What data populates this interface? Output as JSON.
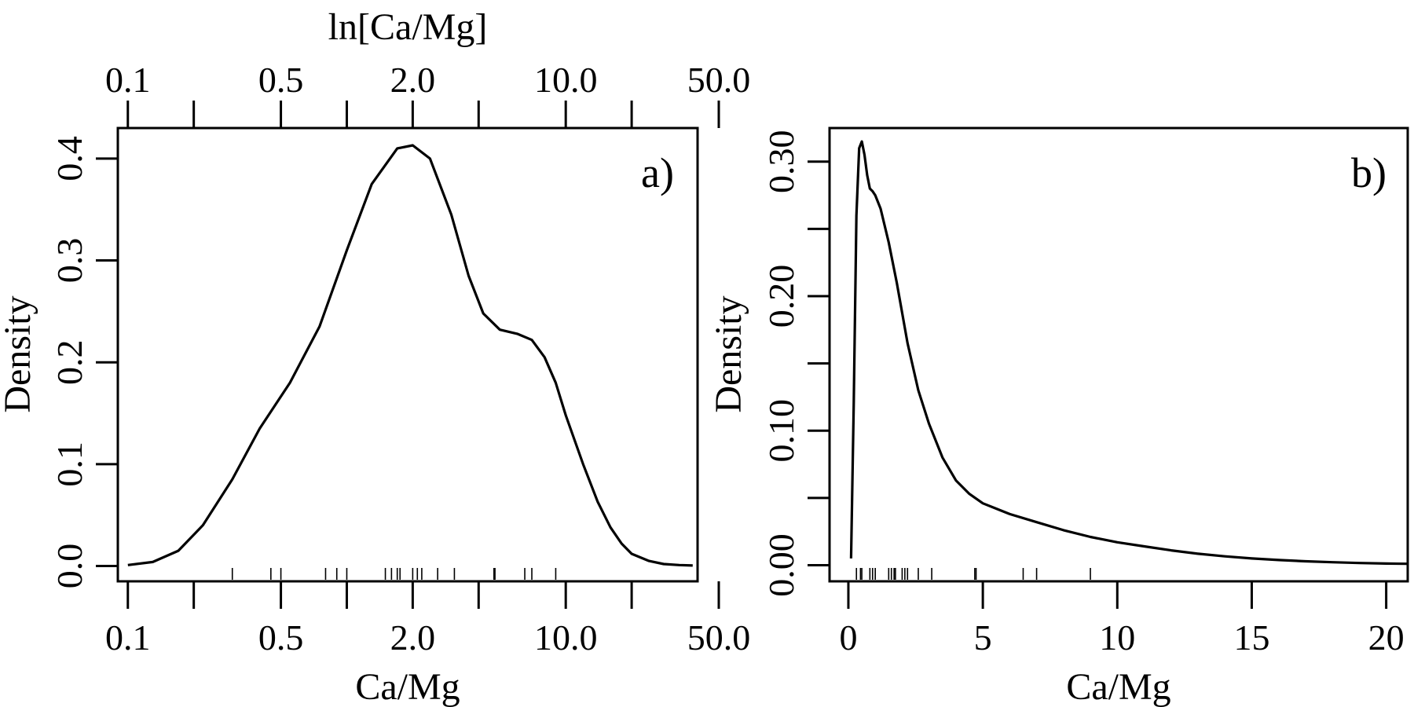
{
  "chart_data": [
    {
      "panel": "a)",
      "type": "line",
      "xlabel": "Ca/Mg",
      "top_xlabel": "ln[Ca/Mg]",
      "ylabel": "Density",
      "x_scale": "log",
      "xlim": [
        0.09,
        40
      ],
      "ylim": [
        -0.015,
        0.43
      ],
      "x_tick_values": [
        0.1,
        0.2,
        0.5,
        1,
        2,
        4,
        10,
        20,
        50
      ],
      "x_tick_labels": [
        {
          "value": 0.1,
          "label": "0.1"
        },
        {
          "value": 0.5,
          "label": "0.5"
        },
        {
          "value": 2,
          "label": "2.0"
        },
        {
          "value": 10,
          "label": "10.0"
        },
        {
          "value": 50,
          "label": "50.0"
        }
      ],
      "y_ticks": [
        {
          "value": 0.0,
          "label": "0.0"
        },
        {
          "value": 0.1,
          "label": "0.1"
        },
        {
          "value": 0.2,
          "label": "0.2"
        },
        {
          "value": 0.3,
          "label": "0.3"
        },
        {
          "value": 0.4,
          "label": "0.4"
        }
      ],
      "series": [
        {
          "x": [
            0.1,
            0.13,
            0.17,
            0.22,
            0.3,
            0.4,
            0.55,
            0.75,
            1.0,
            1.3,
            1.7,
            2.0,
            2.4,
            3.0,
            3.6,
            4.2,
            5.0,
            6.0,
            7.0,
            8.0,
            9.0,
            10.0,
            12.0,
            14.0,
            16.0,
            18.0,
            20.0,
            24.0,
            28.0,
            33.0,
            38.0
          ],
          "y": [
            0.001,
            0.004,
            0.015,
            0.04,
            0.085,
            0.135,
            0.18,
            0.235,
            0.31,
            0.375,
            0.41,
            0.413,
            0.4,
            0.345,
            0.285,
            0.248,
            0.232,
            0.228,
            0.222,
            0.205,
            0.18,
            0.148,
            0.1,
            0.063,
            0.038,
            0.022,
            0.012,
            0.005,
            0.002,
            0.001,
            0.0005
          ]
        }
      ],
      "rug": [
        0.3,
        0.45,
        0.5,
        0.8,
        0.9,
        1.0,
        1.5,
        1.6,
        1.7,
        1.75,
        2.0,
        2.1,
        2.2,
        2.6,
        3.1,
        4.7,
        4.75,
        6.5,
        7.0,
        9.0
      ]
    },
    {
      "panel": "b)",
      "type": "line",
      "xlabel": "Ca/Mg",
      "ylabel": "Density",
      "x_scale": "linear",
      "xlim": [
        -0.7,
        20.8
      ],
      "ylim": [
        -0.012,
        0.325
      ],
      "x_ticks": [
        {
          "value": 0,
          "label": "0"
        },
        {
          "value": 5,
          "label": "5"
        },
        {
          "value": 10,
          "label": "10"
        },
        {
          "value": 15,
          "label": "15"
        },
        {
          "value": 20,
          "label": "20"
        }
      ],
      "y_ticks": [
        {
          "value": 0.0,
          "label": "0.00"
        },
        {
          "value": 0.05,
          "label": ""
        },
        {
          "value": 0.1,
          "label": "0.10"
        },
        {
          "value": 0.15,
          "label": ""
        },
        {
          "value": 0.2,
          "label": "0.20"
        },
        {
          "value": 0.25,
          "label": ""
        },
        {
          "value": 0.3,
          "label": "0.30"
        }
      ],
      "series": [
        {
          "x": [
            0.1,
            0.2,
            0.3,
            0.4,
            0.5,
            0.6,
            0.7,
            0.8,
            0.9,
            1.0,
            1.2,
            1.5,
            1.8,
            2.2,
            2.6,
            3.0,
            3.5,
            4.0,
            4.5,
            5.0,
            6.0,
            7.0,
            8.0,
            9.0,
            10.0,
            11.0,
            12.0,
            13.0,
            14.0,
            15.0,
            16.0,
            17.0,
            18.0,
            19.0,
            20.0,
            20.8
          ],
          "y": [
            0.005,
            0.12,
            0.26,
            0.31,
            0.315,
            0.305,
            0.29,
            0.28,
            0.278,
            0.275,
            0.265,
            0.24,
            0.21,
            0.165,
            0.13,
            0.105,
            0.08,
            0.063,
            0.053,
            0.046,
            0.038,
            0.032,
            0.026,
            0.021,
            0.017,
            0.014,
            0.011,
            0.0085,
            0.0066,
            0.005,
            0.0038,
            0.0029,
            0.0022,
            0.0016,
            0.0012,
            0.001
          ]
        }
      ],
      "rug": [
        0.3,
        0.45,
        0.5,
        0.8,
        0.9,
        1.0,
        1.5,
        1.6,
        1.7,
        1.75,
        2.0,
        2.1,
        2.2,
        2.6,
        3.1,
        4.7,
        4.75,
        6.5,
        7.0,
        9.0
      ]
    }
  ]
}
